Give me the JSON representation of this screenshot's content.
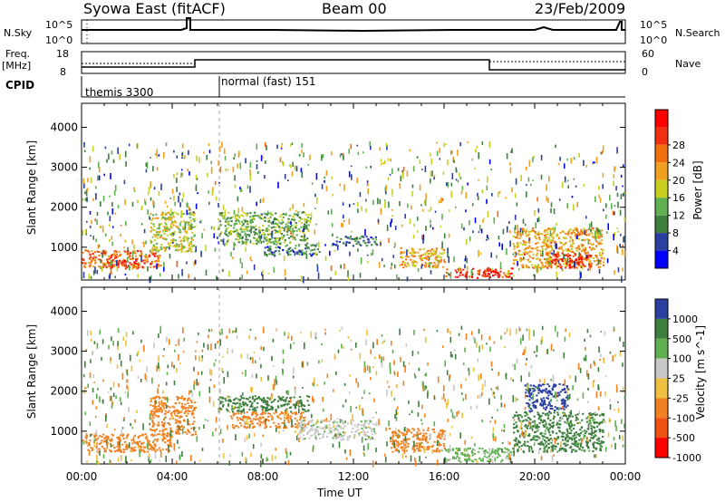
{
  "header": {
    "station": "Syowa East (fitACF)",
    "beam": "Beam 00",
    "date": "23/Feb/2009"
  },
  "top_panels": {
    "nsky_label": "N.Sky",
    "nsky_ticks": [
      "10^5",
      "10^0"
    ],
    "nsearch_label": "N.Search",
    "nsearch_ticks": [
      "10^5",
      "10^0"
    ],
    "freq_label_line1": "Freq.",
    "freq_label_line2": "[MHz]",
    "freq_ticks": [
      "18",
      "8"
    ],
    "nave_label": "Nave",
    "nave_ticks": [
      "60",
      "0"
    ],
    "cpid_label": "CPID",
    "cpid_segments": [
      {
        "name": "themis 3300"
      },
      {
        "name": "normal (fast) 151"
      }
    ]
  },
  "colors": {
    "power": [
      "#0000ff",
      "#2a3fa0",
      "#3e7f3e",
      "#5fb050",
      "#c8d020",
      "#f0a020",
      "#f07010",
      "#f03010",
      "#ff0000"
    ],
    "velocity": [
      "#2a3fa0",
      "#3e7f3e",
      "#5fb050",
      "#c8c8c8",
      "#f0c040",
      "#f08020",
      "#f05010",
      "#ff0000"
    ]
  },
  "chart_data": [
    {
      "type": "heatmap",
      "panel": "power",
      "ylabel": "Slant Range [km]",
      "colorbar_label": "Power [dB]",
      "xlim": [
        "00:00",
        "24:00"
      ],
      "ylim": [
        180,
        4600
      ],
      "x_ticks": [
        "00:00",
        "04:00",
        "08:00",
        "12:00",
        "16:00",
        "20:00",
        "00:00"
      ],
      "y_ticks": [
        "1000",
        "2000",
        "3000",
        "4000"
      ],
      "colorbar_ticks": [
        "4",
        "8",
        "12",
        "16",
        "20",
        "24",
        "28"
      ],
      "colorbar_range": [
        0,
        32
      ],
      "regions": [
        {
          "t0": 0.0,
          "t1": 3.5,
          "r0": 500,
          "r1": 950,
          "value": 24
        },
        {
          "t0": 1.0,
          "t1": 2.5,
          "r0": 480,
          "r1": 700,
          "value": 28
        },
        {
          "t0": 3.0,
          "t1": 5.0,
          "r0": 900,
          "r1": 1900,
          "value": 16
        },
        {
          "t0": 6.0,
          "t1": 10.0,
          "r0": 1100,
          "r1": 1900,
          "value": 12
        },
        {
          "t0": 8.0,
          "t1": 10.5,
          "r0": 800,
          "r1": 1100,
          "value": 8
        },
        {
          "t0": 11.0,
          "t1": 13.0,
          "r0": 1050,
          "r1": 1300,
          "value": 8
        },
        {
          "t0": 14.0,
          "t1": 16.0,
          "r0": 500,
          "r1": 1000,
          "value": 20
        },
        {
          "t0": 16.0,
          "t1": 19.0,
          "r0": 250,
          "r1": 500,
          "value": 28
        },
        {
          "t0": 19.0,
          "t1": 23.0,
          "r0": 500,
          "r1": 1500,
          "value": 20
        },
        {
          "t0": 20.5,
          "t1": 22.5,
          "r0": 500,
          "r1": 900,
          "value": 28
        }
      ]
    },
    {
      "type": "heatmap",
      "panel": "velocity",
      "xlabel": "Time UT",
      "ylabel": "Slant Range [km]",
      "colorbar_label": "Velocity [m s^-1]",
      "xlim": [
        "00:00",
        "24:00"
      ],
      "ylim": [
        180,
        4600
      ],
      "x_ticks": [
        "00:00",
        "04:00",
        "08:00",
        "12:00",
        "16:00",
        "20:00",
        "00:00"
      ],
      "y_ticks": [
        "1000",
        "2000",
        "3000",
        "4000"
      ],
      "colorbar_ticks": [
        "1000",
        "500",
        "100",
        "25",
        "-25",
        "-100",
        "-500",
        "-1000"
      ],
      "regions": [
        {
          "t0": 0.0,
          "t1": 4.0,
          "r0": 500,
          "r1": 950,
          "value": -300
        },
        {
          "t0": 3.0,
          "t1": 5.0,
          "r0": 900,
          "r1": 1900,
          "value": -200
        },
        {
          "t0": 6.0,
          "t1": 10.0,
          "r0": 1500,
          "r1": 1900,
          "value": 300
        },
        {
          "t0": 6.5,
          "t1": 10.0,
          "r0": 1100,
          "r1": 1500,
          "value": -300
        },
        {
          "t0": 9.5,
          "t1": 13.0,
          "r0": 800,
          "r1": 1300,
          "value": 0
        },
        {
          "t0": 13.5,
          "t1": 16.0,
          "r0": 500,
          "r1": 1100,
          "value": -300
        },
        {
          "t0": 16.0,
          "t1": 19.0,
          "r0": 250,
          "r1": 600,
          "value": 50
        },
        {
          "t0": 19.0,
          "t1": 23.0,
          "r0": 500,
          "r1": 1500,
          "value": 150
        },
        {
          "t0": 19.5,
          "t1": 21.5,
          "r0": 1500,
          "r1": 2200,
          "value": 800
        }
      ]
    }
  ]
}
